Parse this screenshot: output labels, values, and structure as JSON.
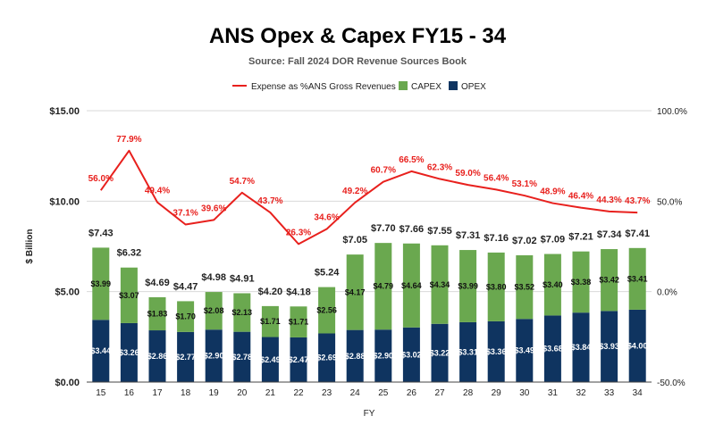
{
  "colors": {
    "opex": "#0f3460",
    "capex": "#6aa84f",
    "line": "#e8201d",
    "grid": "#d9d9d9"
  },
  "chart_data": {
    "type": "bar",
    "stacked": true,
    "title": "ANS Opex & Capex FY15 - 34",
    "subtitle": "Source: Fall 2024 DOR Revenue Sources Book",
    "xlabel": "FY",
    "ylabel": "$ Billion",
    "ylim": [
      0,
      15
    ],
    "y2lim": [
      -50,
      100
    ],
    "y_ticks": [
      "$0.00",
      "$5.00",
      "$10.00",
      "$15.00"
    ],
    "y2_ticks": [
      "-50.0%",
      "0.0%",
      "50.0%",
      "100.0%"
    ],
    "legend_position": "top",
    "grid": true,
    "categories": [
      "15",
      "16",
      "17",
      "18",
      "19",
      "20",
      "21",
      "22",
      "23",
      "24",
      "25",
      "26",
      "27",
      "28",
      "29",
      "30",
      "31",
      "32",
      "33",
      "34"
    ],
    "series": [
      {
        "name": "OPEX",
        "values": [
          3.44,
          3.26,
          2.86,
          2.77,
          2.9,
          2.78,
          2.49,
          2.47,
          2.69,
          2.88,
          2.9,
          3.02,
          3.22,
          3.31,
          3.36,
          3.49,
          3.68,
          3.84,
          3.93,
          4.0
        ],
        "labels": [
          "$3.44",
          "$3.26",
          "$2.86",
          "$2.77",
          "$2.90",
          "$2.78",
          "$2.49",
          "$2.47",
          "$2.69",
          "$2.88",
          "$2.90",
          "$3.02",
          "$3.22",
          "$3.31",
          "$3.36",
          "$3.49",
          "$3.68",
          "$3.84",
          "$3.93",
          "$4.00"
        ]
      },
      {
        "name": "CAPEX",
        "values": [
          3.99,
          3.07,
          1.83,
          1.7,
          2.08,
          2.13,
          1.71,
          1.71,
          2.56,
          4.17,
          4.79,
          4.64,
          4.34,
          3.99,
          3.8,
          3.52,
          3.4,
          3.38,
          3.42,
          3.41
        ],
        "labels": [
          "$3.99",
          "$3.07",
          "$1.83",
          "$1.70",
          "$2.08",
          "$2.13",
          "$1.71",
          "$1.71",
          "$2.56",
          "$4.17",
          "$4.79",
          "$4.64",
          "$4.34",
          "$3.99",
          "$3.80",
          "$3.52",
          "$3.40",
          "$3.38",
          "$3.42",
          "$3.41"
        ]
      },
      {
        "name": "Expense as %ANS Gross Revenues",
        "axis": "right",
        "type": "line",
        "values": [
          56.0,
          77.9,
          49.4,
          37.1,
          39.6,
          54.7,
          43.7,
          26.3,
          34.6,
          49.2,
          60.7,
          66.5,
          62.3,
          59.0,
          56.4,
          53.1,
          48.9,
          46.4,
          44.3,
          43.7
        ],
        "labels": [
          "56.0%",
          "77.9%",
          "49.4%",
          "37.1%",
          "39.6%",
          "54.7%",
          "43.7%",
          "26.3%",
          "34.6%",
          "49.2%",
          "60.7%",
          "66.5%",
          "62.3%",
          "59.0%",
          "56.4%",
          "53.1%",
          "48.9%",
          "46.4%",
          "44.3%",
          "43.7%"
        ]
      }
    ],
    "totals": [
      "$7.43",
      "$6.32",
      "$4.69",
      "$4.47",
      "$4.98",
      "$4.91",
      "$4.20",
      "$4.18",
      "$5.24",
      "$7.05",
      "$7.70",
      "$7.66",
      "$7.55",
      "$7.31",
      "$7.16",
      "$7.02",
      "$7.09",
      "$7.21",
      "$7.34",
      "$7.41"
    ]
  }
}
